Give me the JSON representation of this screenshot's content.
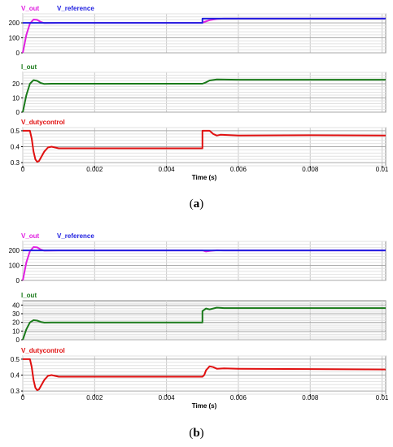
{
  "chart_data": [
    {
      "type": "line",
      "panel_label": "(a)",
      "x_range": [
        0,
        0.0101
      ],
      "x_ticks": [
        "0",
        "0.002",
        "0.004",
        "0.006",
        "0.008",
        "0.01"
      ],
      "xlabel": "Time (s)",
      "subplots": [
        {
          "key": "v",
          "ylim": [
            0,
            260
          ],
          "y_ticks": [
            0,
            100,
            200
          ],
          "series": [
            {
              "name": "V_out",
              "color": "#e020e0",
              "points": [
                [
                  0,
                  0
                ],
                [
                  0.0001,
                  120
                ],
                [
                  0.0002,
                  195
                ],
                [
                  0.0003,
                  222
                ],
                [
                  0.0004,
                  220
                ],
                [
                  0.0005,
                  206
                ],
                [
                  0.0006,
                  198
                ],
                [
                  0.0008,
                  199
                ],
                [
                  0.001,
                  200
                ],
                [
                  0.002,
                  200
                ],
                [
                  0.004,
                  200
                ],
                [
                  0.005,
                  200
                ],
                [
                  0.00505,
                  206
                ],
                [
                  0.0052,
                  218
                ],
                [
                  0.0054,
                  226
                ],
                [
                  0.0056,
                  228
                ],
                [
                  0.006,
                  228
                ],
                [
                  0.008,
                  228
                ],
                [
                  0.0101,
                  228
                ]
              ]
            },
            {
              "name": "V_reference",
              "color": "#2020e0",
              "points": [
                [
                  0,
                  200
                ],
                [
                  0.005,
                  200
                ],
                [
                  0.005,
                  228
                ],
                [
                  0.0101,
                  228
                ]
              ]
            }
          ]
        },
        {
          "key": "i",
          "ylim": [
            0,
            28
          ],
          "y_ticks": [
            0,
            10,
            20
          ],
          "series": [
            {
              "name": "I_out",
              "color": "#1a7a1a",
              "points": [
                [
                  0,
                  0
                ],
                [
                  0.0001,
                  12
                ],
                [
                  0.0002,
                  20
                ],
                [
                  0.0003,
                  22.5
                ],
                [
                  0.0004,
                  22
                ],
                [
                  0.0005,
                  20.5
                ],
                [
                  0.0006,
                  19.8
                ],
                [
                  0.0008,
                  20
                ],
                [
                  0.001,
                  20
                ],
                [
                  0.005,
                  20
                ],
                [
                  0.0051,
                  21
                ],
                [
                  0.0052,
                  22.3
                ],
                [
                  0.0054,
                  23
                ],
                [
                  0.0056,
                  22.9
                ],
                [
                  0.006,
                  22.8
                ],
                [
                  0.0101,
                  22.8
                ]
              ]
            }
          ]
        },
        {
          "key": "d",
          "ylim": [
            0.28,
            0.52
          ],
          "y_ticks": [
            0.3,
            0.4,
            0.5
          ],
          "series": [
            {
              "name": "V_dutycontrol",
              "color": "#e01010",
              "points": [
                [
                  0,
                  0.5
                ],
                [
                  0.0002,
                  0.5
                ],
                [
                  0.00025,
                  0.45
                ],
                [
                  0.0003,
                  0.37
                ],
                [
                  0.00035,
                  0.32
                ],
                [
                  0.0004,
                  0.305
                ],
                [
                  0.00045,
                  0.31
                ],
                [
                  0.0005,
                  0.33
                ],
                [
                  0.0006,
                  0.37
                ],
                [
                  0.0007,
                  0.395
                ],
                [
                  0.0008,
                  0.4
                ],
                [
                  0.0009,
                  0.395
                ],
                [
                  0.001,
                  0.39
                ],
                [
                  0.002,
                  0.39
                ],
                [
                  0.004,
                  0.39
                ],
                [
                  0.005,
                  0.39
                ],
                [
                  0.005,
                  0.5
                ],
                [
                  0.0052,
                  0.5
                ],
                [
                  0.0053,
                  0.48
                ],
                [
                  0.0054,
                  0.47
                ],
                [
                  0.0055,
                  0.475
                ],
                [
                  0.006,
                  0.47
                ],
                [
                  0.008,
                  0.472
                ],
                [
                  0.0101,
                  0.47
                ]
              ]
            }
          ]
        }
      ]
    },
    {
      "type": "line",
      "panel_label": "(b)",
      "x_range": [
        0,
        0.0101
      ],
      "x_ticks": [
        "0",
        "0.002",
        "0.004",
        "0.006",
        "0.008",
        "0.01"
      ],
      "xlabel": "Time (s)",
      "subplots": [
        {
          "key": "v",
          "ylim": [
            0,
            260
          ],
          "y_ticks": [
            0,
            100,
            200
          ],
          "series": [
            {
              "name": "V_out",
              "color": "#e020e0",
              "points": [
                [
                  0,
                  0
                ],
                [
                  0.0001,
                  120
                ],
                [
                  0.0002,
                  195
                ],
                [
                  0.0003,
                  222
                ],
                [
                  0.0004,
                  220
                ],
                [
                  0.0005,
                  206
                ],
                [
                  0.0006,
                  198
                ],
                [
                  0.0008,
                  199
                ],
                [
                  0.001,
                  200
                ],
                [
                  0.005,
                  200
                ],
                [
                  0.0051,
                  193
                ],
                [
                  0.0052,
                  196
                ],
                [
                  0.0054,
                  201
                ],
                [
                  0.0056,
                  200
                ],
                [
                  0.006,
                  200
                ],
                [
                  0.0101,
                  200
                ]
              ]
            },
            {
              "name": "V_reference",
              "color": "#2020e0",
              "points": [
                [
                  0,
                  200
                ],
                [
                  0.0101,
                  200
                ]
              ]
            }
          ]
        },
        {
          "key": "i",
          "ylim": [
            0,
            45
          ],
          "y_ticks": [
            0,
            10,
            20,
            30,
            40
          ],
          "series": [
            {
              "name": "I_out",
              "color": "#1a7a1a",
              "points": [
                [
                  0,
                  0
                ],
                [
                  0.0001,
                  12
                ],
                [
                  0.0002,
                  20
                ],
                [
                  0.0003,
                  22.5
                ],
                [
                  0.0004,
                  22
                ],
                [
                  0.0005,
                  20.5
                ],
                [
                  0.0006,
                  19.8
                ],
                [
                  0.0008,
                  20
                ],
                [
                  0.001,
                  20
                ],
                [
                  0.005,
                  20
                ],
                [
                  0.005,
                  33
                ],
                [
                  0.0051,
                  36
                ],
                [
                  0.0052,
                  35
                ],
                [
                  0.0054,
                  37
                ],
                [
                  0.0056,
                  36.5
                ],
                [
                  0.006,
                  36.5
                ],
                [
                  0.0101,
                  36.5
                ]
              ]
            }
          ]
        },
        {
          "key": "d",
          "ylim": [
            0.28,
            0.52
          ],
          "y_ticks": [
            0.3,
            0.4,
            0.5
          ],
          "series": [
            {
              "name": "V_dutycontrol",
              "color": "#e01010",
              "points": [
                [
                  0,
                  0.5
                ],
                [
                  0.0002,
                  0.5
                ],
                [
                  0.00025,
                  0.45
                ],
                [
                  0.0003,
                  0.37
                ],
                [
                  0.00035,
                  0.32
                ],
                [
                  0.0004,
                  0.305
                ],
                [
                  0.00045,
                  0.31
                ],
                [
                  0.0005,
                  0.33
                ],
                [
                  0.0006,
                  0.37
                ],
                [
                  0.0007,
                  0.395
                ],
                [
                  0.0008,
                  0.4
                ],
                [
                  0.0009,
                  0.395
                ],
                [
                  0.001,
                  0.39
                ],
                [
                  0.002,
                  0.39
                ],
                [
                  0.004,
                  0.39
                ],
                [
                  0.005,
                  0.39
                ],
                [
                  0.00505,
                  0.4
                ],
                [
                  0.0051,
                  0.43
                ],
                [
                  0.0052,
                  0.455
                ],
                [
                  0.0053,
                  0.45
                ],
                [
                  0.0054,
                  0.44
                ],
                [
                  0.0056,
                  0.442
                ],
                [
                  0.006,
                  0.44
                ],
                [
                  0.008,
                  0.438
                ],
                [
                  0.0101,
                  0.435
                ]
              ]
            }
          ]
        }
      ]
    }
  ]
}
